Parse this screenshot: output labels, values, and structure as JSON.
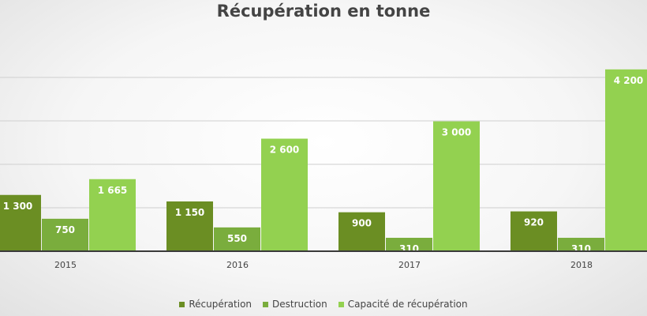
{
  "chart_data": {
    "type": "bar",
    "title": "Récupération en tonne",
    "categories": [
      "2015",
      "2016",
      "2017",
      "2018"
    ],
    "series": [
      {
        "name": "Récupération",
        "values": [
          1300,
          1150,
          900,
          920
        ],
        "labels": [
          "1 300",
          "1 150",
          "900",
          "920"
        ],
        "color": "#6b8e23"
      },
      {
        "name": "Destruction",
        "values": [
          750,
          550,
          310,
          310
        ],
        "labels": [
          "750",
          "550",
          "310",
          "310"
        ],
        "color": "#7aad3d"
      },
      {
        "name": "Capacité de récupération",
        "values": [
          1665,
          2600,
          3000,
          4200
        ],
        "labels": [
          "1 665",
          "2 600",
          "3 000",
          "4 200"
        ],
        "color": "#93d150"
      }
    ],
    "ylim": [
      0,
      4500
    ],
    "grid": true,
    "legend": "bottom"
  }
}
